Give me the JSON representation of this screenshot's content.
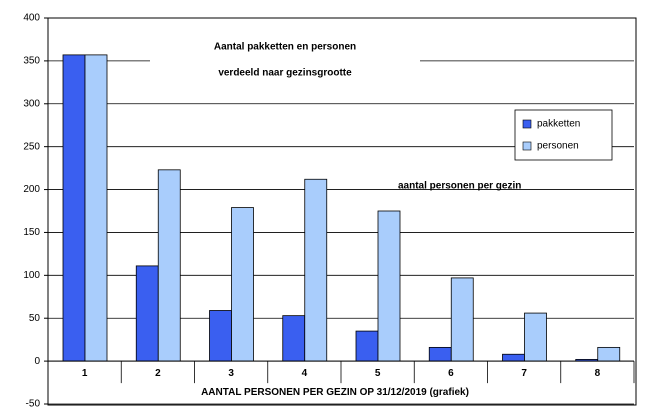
{
  "chart_data": {
    "type": "bar",
    "title": [
      "Aantal pakketten en personen",
      "verdeeld naar gezinsgrootte"
    ],
    "annotation": "aantal personen per gezin",
    "x_label": "AANTAL PERSONEN PER GEZIN OP 31/12/2019 (grafiek)",
    "categories": [
      "1",
      "2",
      "3",
      "4",
      "5",
      "6",
      "7",
      "8"
    ],
    "series": [
      {
        "name": "pakketten",
        "color": "#3a5ff0",
        "values": [
          357,
          111,
          59,
          53,
          35,
          16,
          8,
          2
        ]
      },
      {
        "name": "personen",
        "color": "#a9cdfc",
        "values": [
          357,
          223,
          179,
          212,
          175,
          97,
          56,
          16
        ]
      }
    ],
    "ylim": [
      -50,
      400
    ],
    "yticks": [
      -50,
      0,
      50,
      100,
      150,
      200,
      250,
      300,
      350,
      400
    ],
    "grid": true,
    "legend": "right"
  }
}
